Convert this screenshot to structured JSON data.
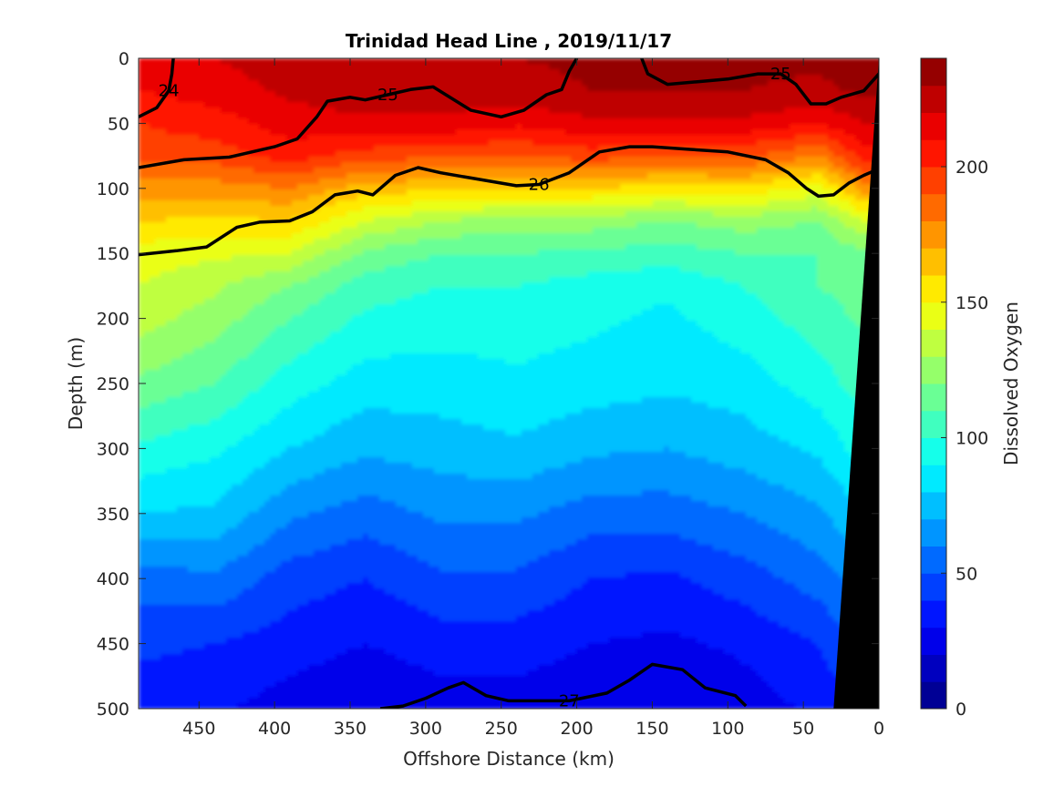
{
  "chart_data": {
    "type": "heatmap",
    "subtype": "filled-contour-section",
    "title": "Trinidad Head Line , 2019/11/17",
    "xlabel": "Offshore Distance (km)",
    "ylabel": "Depth (m)",
    "colorbar_label": "Dissolved Oxygen",
    "x_direction": "reversed",
    "y_direction": "reversed",
    "xlim": [
      490,
      0
    ],
    "ylim": [
      0,
      500
    ],
    "x_ticks": [
      450,
      400,
      350,
      300,
      250,
      200,
      150,
      100,
      50,
      0
    ],
    "y_ticks": [
      0,
      50,
      100,
      150,
      200,
      250,
      300,
      350,
      400,
      450,
      500
    ],
    "colorbar_ticks": [
      0,
      50,
      100,
      150,
      200
    ],
    "colorbar_range": [
      0,
      240
    ],
    "colormap": "jet",
    "colorbar_levels": 24,
    "oxygen_x_km": [
      490,
      440,
      390,
      340,
      290,
      240,
      190,
      140,
      90,
      40,
      10
    ],
    "oxygen_depth_m": [
      0,
      25,
      50,
      75,
      100,
      125,
      150,
      175,
      200,
      250,
      300,
      350,
      400,
      450,
      500
    ],
    "oxygen_values": [
      [
        215,
        220,
        225,
        228,
        228,
        230,
        232,
        232,
        232,
        232,
        235
      ],
      [
        210,
        215,
        222,
        226,
        226,
        226,
        230,
        230,
        230,
        228,
        232
      ],
      [
        200,
        205,
        215,
        218,
        218,
        212,
        218,
        218,
        218,
        210,
        220
      ],
      [
        195,
        195,
        205,
        195,
        192,
        190,
        195,
        190,
        192,
        180,
        205
      ],
      [
        175,
        175,
        180,
        165,
        162,
        160,
        160,
        155,
        158,
        145,
        175
      ],
      [
        160,
        158,
        160,
        140,
        130,
        125,
        125,
        120,
        125,
        120,
        140
      ],
      [
        145,
        142,
        140,
        118,
        110,
        110,
        108,
        105,
        110,
        110,
        118
      ],
      [
        140,
        132,
        120,
        105,
        100,
        100,
        95,
        92,
        100,
        110,
        115
      ],
      [
        135,
        125,
        110,
        98,
        95,
        95,
        92,
        88,
        95,
        105,
        112
      ],
      [
        118,
        110,
        95,
        85,
        85,
        88,
        85,
        82,
        85,
        95,
        105
      ],
      [
        98,
        92,
        80,
        72,
        75,
        78,
        72,
        70,
        75,
        82,
        95
      ],
      [
        80,
        78,
        62,
        55,
        62,
        62,
        55,
        55,
        60,
        68,
        80
      ],
      [
        55,
        58,
        45,
        40,
        48,
        48,
        40,
        38,
        45,
        55,
        65
      ],
      [
        42,
        40,
        35,
        30,
        35,
        35,
        30,
        28,
        32,
        40,
        52
      ],
      [
        35,
        32,
        25,
        20,
        25,
        25,
        22,
        20,
        25,
        32,
        42
      ]
    ],
    "density_contours": [
      {
        "label": "24",
        "bold": true,
        "points": [
          [
            490,
            45
          ],
          [
            478,
            38
          ],
          [
            470,
            25
          ],
          [
            468,
            12
          ],
          [
            467,
            0
          ]
        ]
      },
      {
        "label": "25",
        "bold": true,
        "points": [
          [
            490,
            84
          ],
          [
            460,
            78
          ],
          [
            430,
            76
          ],
          [
            400,
            68
          ],
          [
            385,
            62
          ],
          [
            372,
            45
          ],
          [
            365,
            33
          ],
          [
            350,
            30
          ],
          [
            340,
            32
          ],
          [
            325,
            28
          ],
          [
            310,
            24
          ],
          [
            295,
            22
          ],
          [
            270,
            40
          ],
          [
            250,
            45
          ],
          [
            235,
            40
          ],
          [
            220,
            28
          ],
          [
            210,
            24
          ],
          [
            205,
            10
          ],
          [
            200,
            0
          ]
        ]
      },
      {
        "label": "25",
        "bold": true,
        "points": [
          [
            157,
            0
          ],
          [
            153,
            12
          ],
          [
            140,
            20
          ],
          [
            120,
            18
          ],
          [
            100,
            16
          ],
          [
            80,
            12
          ],
          [
            65,
            12
          ],
          [
            55,
            20
          ],
          [
            45,
            35
          ],
          [
            35,
            35
          ],
          [
            25,
            30
          ],
          [
            10,
            25
          ],
          [
            0,
            12
          ]
        ]
      },
      {
        "label": "26",
        "bold": true,
        "points": [
          [
            490,
            151
          ],
          [
            465,
            148
          ],
          [
            445,
            145
          ],
          [
            425,
            130
          ],
          [
            410,
            126
          ],
          [
            390,
            125
          ],
          [
            375,
            118
          ],
          [
            360,
            105
          ],
          [
            345,
            102
          ],
          [
            335,
            105
          ],
          [
            320,
            90
          ],
          [
            305,
            84
          ],
          [
            290,
            88
          ],
          [
            270,
            92
          ],
          [
            240,
            98
          ],
          [
            225,
            97
          ],
          [
            205,
            88
          ],
          [
            185,
            72
          ],
          [
            165,
            68
          ],
          [
            150,
            68
          ],
          [
            125,
            70
          ],
          [
            100,
            72
          ],
          [
            75,
            78
          ],
          [
            60,
            88
          ],
          [
            48,
            100
          ],
          [
            40,
            106
          ],
          [
            30,
            105
          ],
          [
            20,
            96
          ],
          [
            10,
            90
          ],
          [
            0,
            85
          ]
        ]
      },
      {
        "label": "27",
        "bold": true,
        "points": [
          [
            330,
            500
          ],
          [
            315,
            498
          ],
          [
            300,
            492
          ],
          [
            285,
            484
          ],
          [
            275,
            480
          ],
          [
            260,
            490
          ],
          [
            245,
            494
          ],
          [
            225,
            494
          ],
          [
            205,
            494
          ],
          [
            180,
            488
          ],
          [
            165,
            478
          ],
          [
            150,
            466
          ],
          [
            130,
            470
          ],
          [
            115,
            484
          ],
          [
            95,
            490
          ],
          [
            88,
            498
          ]
        ]
      }
    ]
  }
}
